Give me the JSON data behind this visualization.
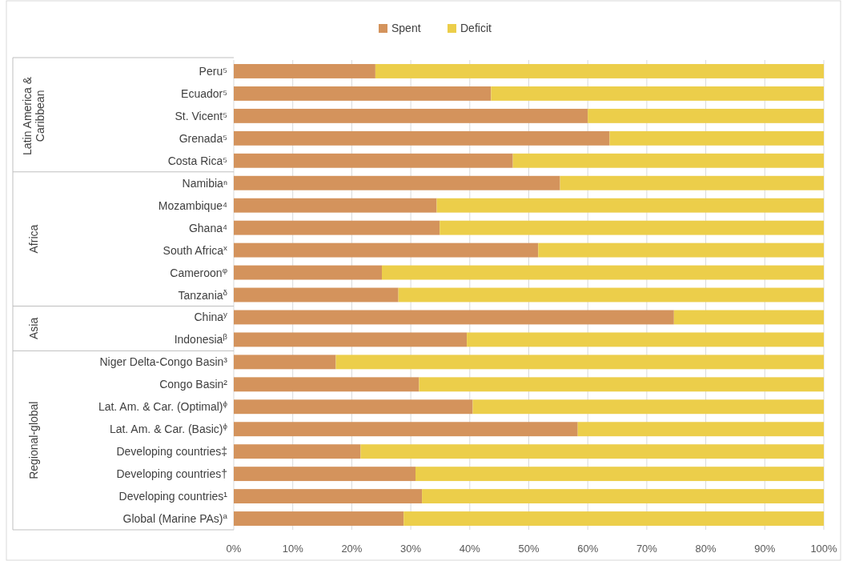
{
  "chart_data": {
    "type": "bar",
    "orientation": "horizontal",
    "stacked": true,
    "categories": [
      "Peru⁵",
      "Ecuador⁵",
      "St. Vicent⁵",
      "Grenada⁵",
      "Costa Rica⁵",
      "Namibiaⁿ",
      "Mozambique⁴",
      "Ghana⁴",
      "South Africa$^{x}$",
      "Cameroon$^{φ}$",
      "Tanzania$^{δ}$",
      "China$^{y}$",
      "Indonesia$^{β}$",
      "Niger Delta-Congo Basin³",
      "Congo Basin²",
      "Lat. Am. & Car. (Optimal)$^{ϕ}$",
      "Lat. Am. & Car. (Basic)$^{ϕ}$",
      "Developing countries‡",
      "Developing countries†",
      "Developing countries¹",
      "Global (Marine PAs)$^{a}$"
    ],
    "series": [
      {
        "name": "Spent",
        "color": "#d4935c",
        "values": [
          24.0,
          43.6,
          60.0,
          63.7,
          47.3,
          55.3,
          34.4,
          34.9,
          51.6,
          25.1,
          27.9,
          74.6,
          39.5,
          17.3,
          31.4,
          40.5,
          58.3,
          21.5,
          30.8,
          31.9,
          28.8
        ]
      },
      {
        "name": "Deficit",
        "color": "#ecce4a",
        "values": [
          76.0,
          56.4,
          40.0,
          36.3,
          52.7,
          44.7,
          65.6,
          65.1,
          48.4,
          74.9,
          72.1,
          25.4,
          60.5,
          82.7,
          68.6,
          59.5,
          41.7,
          78.5,
          69.2,
          68.1,
          71.2
        ]
      }
    ],
    "xlim": [
      0,
      100
    ],
    "xticks": [
      {
        "value": 0,
        "label": "0%"
      },
      {
        "value": 10,
        "label": "10%"
      },
      {
        "value": 20,
        "label": "20%"
      },
      {
        "value": 30,
        "label": "30%"
      },
      {
        "value": 40,
        "label": "40%"
      },
      {
        "value": 50,
        "label": "50%"
      },
      {
        "value": 60,
        "label": "60%"
      },
      {
        "value": 70,
        "label": "70%"
      },
      {
        "value": 80,
        "label": "80%"
      },
      {
        "value": 90,
        "label": "90%"
      },
      {
        "value": 100,
        "label": "100%"
      }
    ],
    "grid": "x",
    "legend": "top",
    "annotations": [
      "Latin America & Caribbean",
      "Africa",
      "Asia",
      "Regional-global"
    ]
  }
}
